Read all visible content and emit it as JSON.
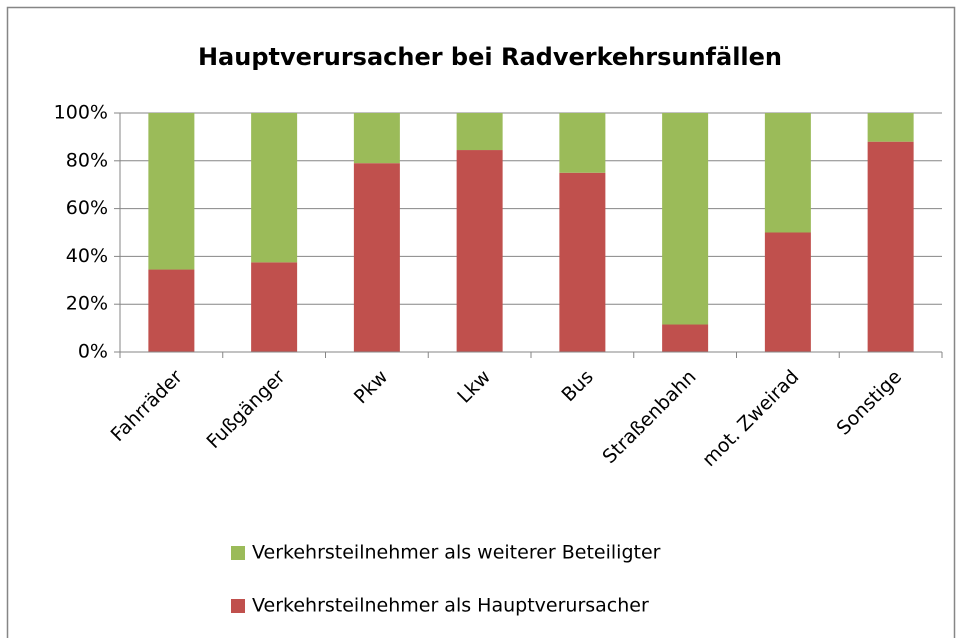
{
  "chart_data": {
    "type": "stacked_bar",
    "title": "Hauptverursacher bei Radverkehrsunfällen",
    "categories": [
      "Fahrräder",
      "Fußgänger",
      "Pkw",
      "Lkw",
      "Bus",
      "Straßenbahn",
      "mot. Zweirad",
      "Sonstige"
    ],
    "series": [
      {
        "name": "Verkehrsteilnehmer als Hauptverursacher",
        "color": "#c0504d",
        "values": [
          34.5,
          37.5,
          79,
          84.5,
          75,
          11.5,
          50,
          88
        ]
      },
      {
        "name": "Verkehrsteilnehmer als weiterer Beteiligter",
        "color": "#9bbb59",
        "values": [
          65.5,
          62.5,
          21,
          15.5,
          25,
          88.5,
          50,
          12
        ]
      }
    ],
    "ylim": [
      0,
      100
    ],
    "yticks": [
      {
        "value": 0,
        "label": "0%"
      },
      {
        "value": 20,
        "label": "20%"
      },
      {
        "value": 40,
        "label": "40%"
      },
      {
        "value": 60,
        "label": "60%"
      },
      {
        "value": 80,
        "label": "80%"
      },
      {
        "value": 100,
        "label": "100%"
      }
    ],
    "grid": true
  }
}
